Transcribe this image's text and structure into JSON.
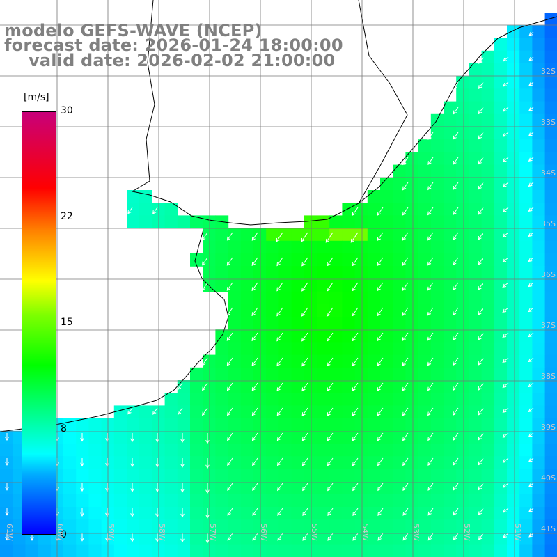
{
  "title": {
    "line1": "modelo GEFS-WAVE (NCEP)",
    "line2": "forecast date: 2026-01-24 18:00:00",
    "line3": "valid date: 2026-02-02 21:00:00"
  },
  "colorbar": {
    "unit": "[m/s]",
    "ticks": [
      "30",
      "22",
      "15",
      "8",
      "0"
    ],
    "colors": [
      "#0000ff",
      "#00aaff",
      "#00ffff",
      "#00ff00",
      "#7fff00",
      "#ffff00",
      "#ff8000",
      "#ff0000",
      "#c8007a"
    ]
  },
  "lat_labels": [
    "32S",
    "33S",
    "34S",
    "35S",
    "36S",
    "37S",
    "38S",
    "39S",
    "40S",
    "41S"
  ],
  "lon_labels": [
    "61W",
    "60W",
    "59W",
    "58W",
    "57W",
    "56W",
    "55W",
    "54W",
    "53W",
    "52W",
    "51W"
  ],
  "colors": {
    "land": "#ffffff",
    "coastline": "#000000",
    "grid": "#777777",
    "arrows": "#ffffff",
    "title": "#808080"
  }
}
